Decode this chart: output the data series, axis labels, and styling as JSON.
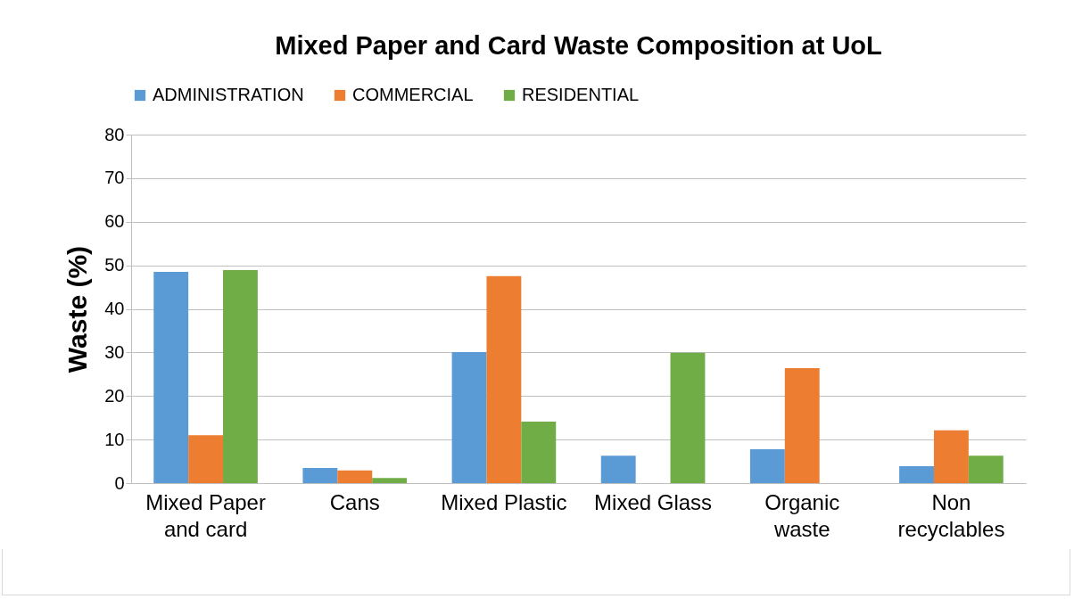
{
  "chart_data": {
    "type": "bar",
    "title": "Mixed Paper and Card Waste Composition at UoL",
    "ylabel": "Waste (%)",
    "categories": [
      "Mixed Paper and card",
      "Cans",
      "Mixed Plastic",
      "Mixed Glass",
      "Organic waste",
      "Non recyclables"
    ],
    "series": [
      {
        "name": "ADMINISTRATION",
        "color": "#5b9bd5",
        "values": [
          48.5,
          3.5,
          30.1,
          6.3,
          7.8,
          3.9
        ]
      },
      {
        "name": "COMMERCIAL",
        "color": "#ed7d31",
        "values": [
          11.0,
          2.9,
          47.5,
          null,
          26.4,
          12.1
        ]
      },
      {
        "name": "RESIDENTIAL",
        "color": "#70ad47",
        "values": [
          48.9,
          1.2,
          14.1,
          29.9,
          null,
          6.3
        ]
      }
    ],
    "ylim": [
      0,
      80
    ],
    "yticks": [
      0,
      10,
      20,
      30,
      40,
      50,
      60,
      70,
      80
    ],
    "grid": "y",
    "legend": "top"
  }
}
